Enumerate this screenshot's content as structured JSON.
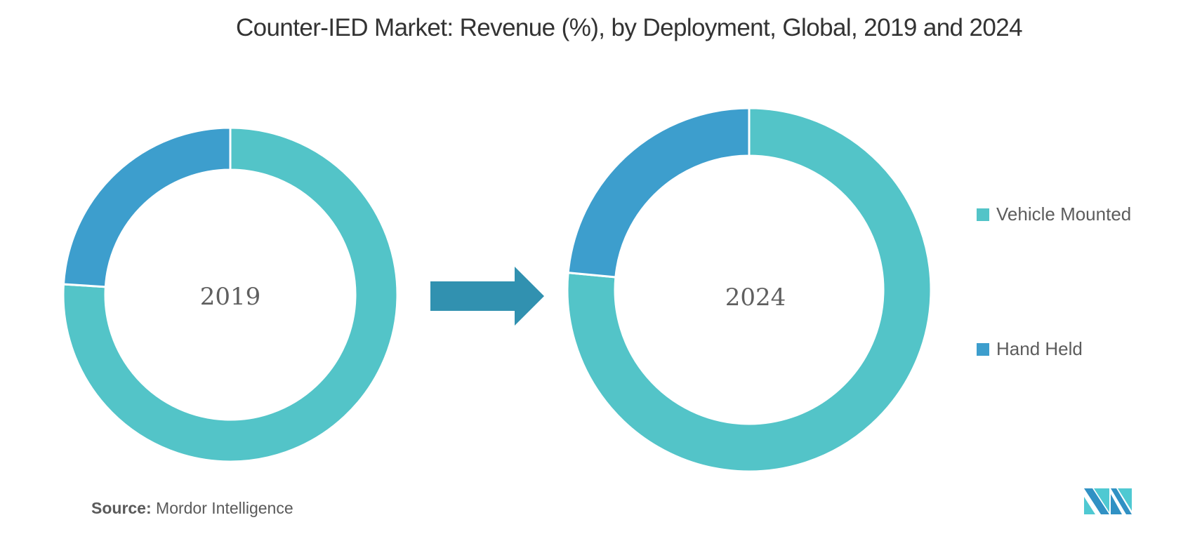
{
  "title": "Counter-IED Market: Revenue (%), by Deployment, Global, 2019 and 2024",
  "colors": {
    "vehicle_mounted": "#53C4C8",
    "hand_held": "#3D9ECD",
    "arrow": "#3191B0",
    "text": "#333333"
  },
  "legend": {
    "items": [
      {
        "label": "Vehicle Mounted",
        "color": "#53C4C8"
      },
      {
        "label": "Hand Held",
        "color": "#3D9ECD"
      }
    ]
  },
  "source": {
    "prefix": "Source:",
    "text": "Mordor Intelligence"
  },
  "logo": {
    "icon": "mordor-intelligence-logo-icon"
  },
  "arrow": {
    "icon": "right-arrow-icon"
  },
  "chart_data": [
    {
      "type": "pie",
      "variant": "donut",
      "title": "2019",
      "center_label": "2019",
      "categories": [
        "Vehicle Mounted",
        "Hand Held"
      ],
      "values": [
        76,
        24
      ],
      "unit": "%",
      "start_angle": "12 o'clock, Vehicle Mounted clockwise"
    },
    {
      "type": "pie",
      "variant": "donut",
      "title": "2024",
      "center_label": "2024",
      "categories": [
        "Vehicle Mounted",
        "Hand Held"
      ],
      "values": [
        76.5,
        23.5
      ],
      "unit": "%",
      "start_angle": "12 o'clock, Vehicle Mounted clockwise"
    }
  ]
}
